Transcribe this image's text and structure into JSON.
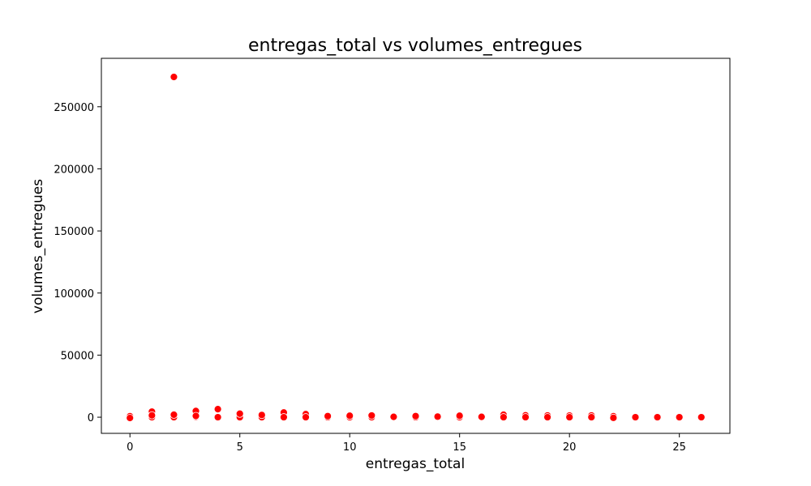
{
  "chart_data": {
    "type": "scatter",
    "title": "entregas_total vs volumes_entregues",
    "xlabel": "entregas_total",
    "ylabel": "volumes_entregues",
    "xlim": [
      -1.3,
      27.3
    ],
    "ylim": [
      -13000,
      289000
    ],
    "xticks": [
      0,
      5,
      10,
      15,
      20,
      25
    ],
    "yticks": [
      0,
      50000,
      100000,
      150000,
      200000,
      250000
    ],
    "grid": false,
    "point_color": "#ff0000",
    "point_edge_color": "#ffffff",
    "series": [
      {
        "points": [
          {
            "x": 0,
            "y": 0
          },
          {
            "x": 0,
            "y": 800
          },
          {
            "x": 0,
            "y": -600
          },
          {
            "x": 1,
            "y": 0
          },
          {
            "x": 1,
            "y": 4500
          },
          {
            "x": 1,
            "y": 1500
          },
          {
            "x": 2,
            "y": 274000
          },
          {
            "x": 2,
            "y": 0
          },
          {
            "x": 2,
            "y": 2000
          },
          {
            "x": 3,
            "y": 5000
          },
          {
            "x": 3,
            "y": 300
          },
          {
            "x": 3,
            "y": 1000
          },
          {
            "x": 4,
            "y": 6500
          },
          {
            "x": 4,
            "y": 0
          },
          {
            "x": 5,
            "y": 0
          },
          {
            "x": 5,
            "y": 2800
          },
          {
            "x": 6,
            "y": 0
          },
          {
            "x": 6,
            "y": 1800
          },
          {
            "x": 7,
            "y": 3800
          },
          {
            "x": 7,
            "y": 0
          },
          {
            "x": 8,
            "y": 2500
          },
          {
            "x": 8,
            "y": 0
          },
          {
            "x": 9,
            "y": 0
          },
          {
            "x": 9,
            "y": 900
          },
          {
            "x": 10,
            "y": 0
          },
          {
            "x": 10,
            "y": 1200
          },
          {
            "x": 11,
            "y": 0
          },
          {
            "x": 11,
            "y": 1400
          },
          {
            "x": 12,
            "y": 0
          },
          {
            "x": 12,
            "y": 300
          },
          {
            "x": 13,
            "y": 0
          },
          {
            "x": 13,
            "y": 900
          },
          {
            "x": 14,
            "y": 0
          },
          {
            "x": 14,
            "y": 500
          },
          {
            "x": 15,
            "y": 0
          },
          {
            "x": 15,
            "y": 1200
          },
          {
            "x": 16,
            "y": 0
          },
          {
            "x": 16,
            "y": 300
          },
          {
            "x": 17,
            "y": 2000
          },
          {
            "x": 17,
            "y": 0
          },
          {
            "x": 18,
            "y": 1500
          },
          {
            "x": 18,
            "y": 0
          },
          {
            "x": 19,
            "y": 1400
          },
          {
            "x": 19,
            "y": 0
          },
          {
            "x": 20,
            "y": 1300
          },
          {
            "x": 20,
            "y": 0
          },
          {
            "x": 21,
            "y": 1400
          },
          {
            "x": 21,
            "y": 0
          },
          {
            "x": 22,
            "y": 800
          },
          {
            "x": 22,
            "y": -500
          },
          {
            "x": 23,
            "y": 0
          },
          {
            "x": 24,
            "y": 0
          },
          {
            "x": 25,
            "y": 0
          },
          {
            "x": 26,
            "y": 0
          }
        ]
      }
    ]
  }
}
